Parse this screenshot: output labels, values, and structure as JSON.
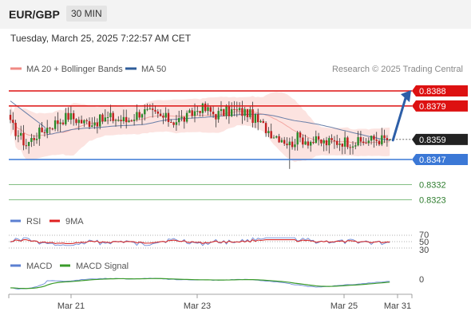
{
  "header": {
    "symbol": "EUR/GBP",
    "interval": "30 MIN",
    "datetime": "Tuesday, March 25, 2025 7:22:57 AM CET"
  },
  "legend": {
    "items": [
      {
        "label": "MA 20 + Bollinger Bands",
        "color": "#f08a84"
      },
      {
        "label": "MA 50",
        "color": "#2e5c9a"
      }
    ],
    "credit": "Research © 2025 Trading Central"
  },
  "rsi_legend": [
    {
      "label": "RSI",
      "color": "#5b7fd1"
    },
    {
      "label": "9MA",
      "color": "#e02020"
    }
  ],
  "macd_legend": [
    {
      "label": "MACD",
      "color": "#5b7fd1"
    },
    {
      "label": "MACD Signal",
      "color": "#3a9b2a"
    }
  ],
  "colors": {
    "resistance": "#dd1111",
    "support": "#3b78d6",
    "target": "#5aa85a",
    "arrow": "#2d5fa8",
    "current_price_bg": "#222222"
  },
  "chart_data": {
    "type": "candlestick",
    "price_range": [
      0.8316,
      0.8396
    ],
    "levels": [
      {
        "value": 0.8388,
        "label": "0.8388",
        "kind": "resistance"
      },
      {
        "value": 0.8379,
        "label": "0.8379",
        "kind": "resistance"
      },
      {
        "value": 0.8359,
        "label": "0.8359",
        "kind": "current"
      },
      {
        "value": 0.8347,
        "label": "0.8347",
        "kind": "support"
      },
      {
        "value": 0.8332,
        "label": "0.8332",
        "kind": "target"
      },
      {
        "value": 0.8323,
        "label": "0.8323",
        "kind": "target"
      }
    ],
    "x_ticks": [
      "Mar 21",
      "Mar 23",
      "Mar 25",
      "Mar 31"
    ],
    "close_anchors": [
      [
        0,
        0.8368
      ],
      [
        3,
        0.8362
      ],
      [
        6,
        0.8356
      ],
      [
        10,
        0.8362
      ],
      [
        16,
        0.8368
      ],
      [
        22,
        0.8373
      ],
      [
        28,
        0.8369
      ],
      [
        33,
        0.837
      ],
      [
        38,
        0.8372
      ],
      [
        44,
        0.837
      ],
      [
        50,
        0.8376
      ],
      [
        56,
        0.8373
      ],
      [
        62,
        0.837
      ],
      [
        67,
        0.8372
      ],
      [
        72,
        0.8378
      ],
      [
        78,
        0.8374
      ],
      [
        84,
        0.8376
      ],
      [
        90,
        0.8375
      ],
      [
        95,
        0.8368
      ],
      [
        100,
        0.8362
      ],
      [
        103,
        0.836
      ],
      [
        106,
        0.8356
      ],
      [
        109,
        0.836
      ],
      [
        114,
        0.8358
      ],
      [
        120,
        0.8357
      ],
      [
        126,
        0.8358
      ],
      [
        132,
        0.8357
      ],
      [
        138,
        0.8359
      ],
      [
        144,
        0.8359
      ]
    ],
    "rsi_levels": [
      {
        "value": 70,
        "label": "70"
      },
      {
        "value": 50,
        "label": "50"
      },
      {
        "value": 30,
        "label": "30"
      }
    ],
    "macd_zero_label": "0"
  }
}
